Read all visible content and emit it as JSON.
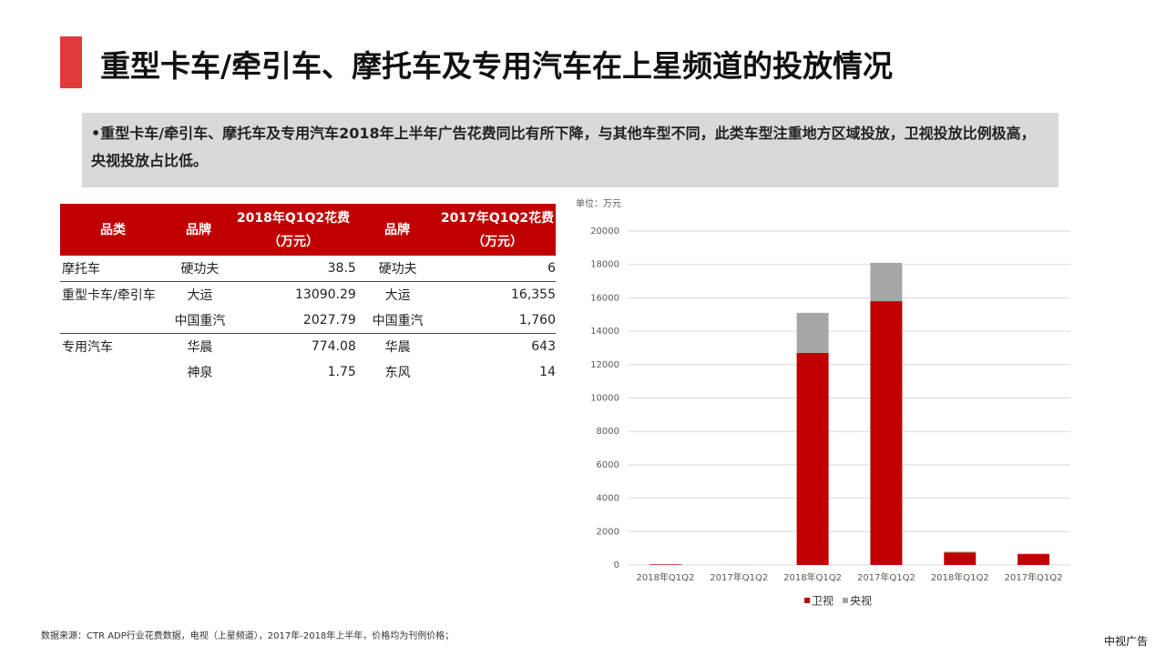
{
  "header": {
    "title": "重型卡车/牵引车、摩托车及专用汽车在上星频道的投放情况"
  },
  "bullet": "•重型卡车/牵引车、摩托车及专用汽车2018年上半年广告花费同比有所下降，与其他车型不同，此类车型注重地方区域投放，卫视投放比例极高，央视投放占比低。",
  "table": {
    "headers": [
      [
        "品类"
      ],
      [
        "品牌"
      ],
      [
        "2018年Q1Q2花费",
        "（万元）"
      ],
      [
        "品牌"
      ],
      [
        "2017年Q1Q2花费",
        "（万元）"
      ]
    ],
    "rows": [
      [
        "摩托车",
        "硬功夫",
        "38.5",
        "硬功夫",
        "6"
      ],
      [
        "重型卡车/牵引车",
        "大运",
        "13090.29",
        "大运",
        "16,355"
      ],
      [
        null,
        "中国重汽",
        "2027.79",
        "中国重汽",
        "1,760"
      ],
      [
        "专用汽车",
        "华晨",
        "774.08",
        "华晨",
        "643"
      ],
      [
        null,
        "神泉",
        "1.75",
        "东风",
        "14"
      ]
    ]
  },
  "chart_data": {
    "type": "stacked-bar",
    "unit_label": "单位：万元",
    "categories": [
      "2018年Q1Q2",
      "2017年Q1Q2",
      "2018年Q1Q2",
      "2017年Q1Q2",
      "2018年Q1Q2",
      "2017年Q1Q2"
    ],
    "series": [
      {
        "name": "卫视",
        "color": "#c00000",
        "values": [
          35,
          2,
          12700,
          15800,
          750,
          650
        ]
      },
      {
        "name": "央视",
        "color": "#a6a6a6",
        "values": [
          3,
          4,
          2400,
          2300,
          50,
          30
        ]
      }
    ],
    "ylim": [
      0,
      20000
    ],
    "yticks": [
      0,
      2000,
      4000,
      6000,
      8000,
      10000,
      12000,
      14000,
      16000,
      18000,
      20000
    ],
    "grid": true
  },
  "footer": {
    "source": "数据来源：CTR ADP行业花费数据，电视（上星频道），2017年-2018年上半年，价格均为刊例价格；",
    "brand": "中视广告"
  }
}
